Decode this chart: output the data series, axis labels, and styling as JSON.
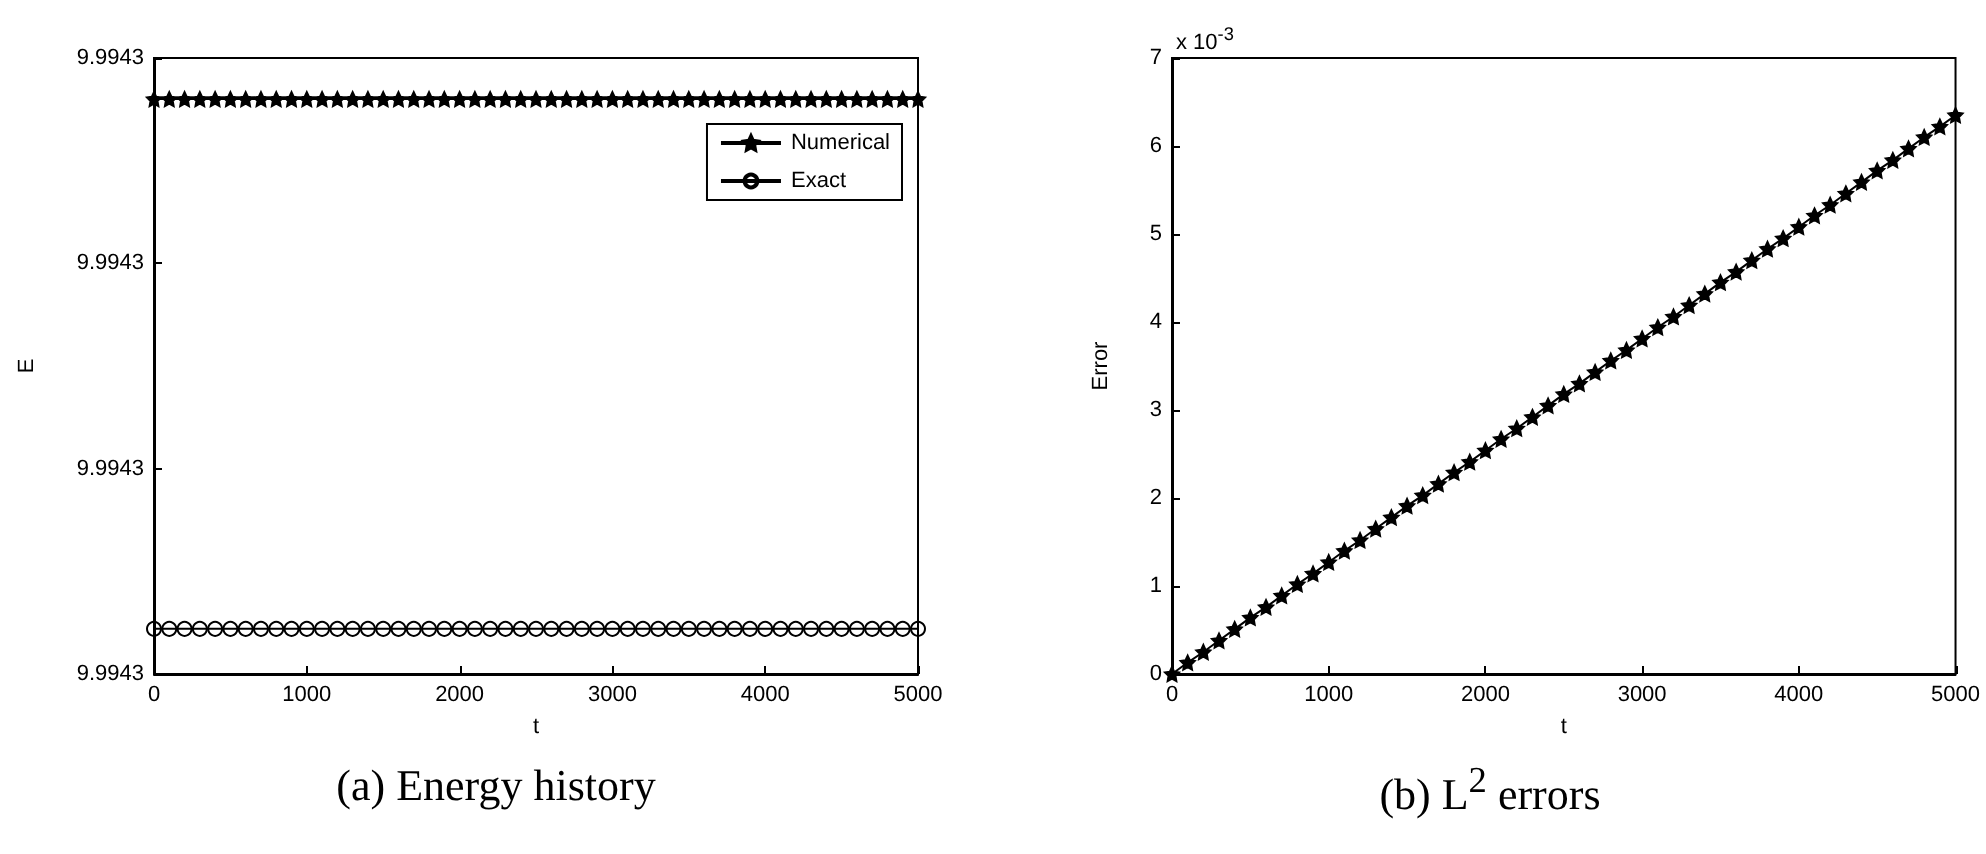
{
  "chart_data": [
    {
      "type": "line",
      "title": "(a)  Energy history",
      "xlabel": "t",
      "ylabel": "E",
      "legend": "top right",
      "line_style": "solid",
      "x": [
        0,
        100,
        200,
        300,
        400,
        500,
        600,
        700,
        800,
        900,
        1000,
        1100,
        1200,
        1300,
        1400,
        1500,
        1600,
        1700,
        1800,
        1900,
        2000,
        2100,
        2200,
        2300,
        2400,
        2500,
        2600,
        2700,
        2800,
        2900,
        3000,
        3100,
        3200,
        3300,
        3400,
        3500,
        3600,
        3700,
        3800,
        3900,
        4000,
        4100,
        4200,
        4300,
        4400,
        4500,
        4600,
        4700,
        4800,
        4900,
        5000
      ],
      "series": [
        {
          "name": "Numerical",
          "color": "#000000",
          "marker": "star",
          "values": [
            9.994328,
            9.994328,
            9.994328,
            9.994328,
            9.994328,
            9.994328,
            9.994328,
            9.994328,
            9.994328,
            9.994328,
            9.994328,
            9.994328,
            9.994328,
            9.994328,
            9.994328,
            9.994328,
            9.994328,
            9.994328,
            9.994328,
            9.994328,
            9.994328,
            9.994328,
            9.994328,
            9.994328,
            9.994328,
            9.994328,
            9.994328,
            9.994328,
            9.994328,
            9.994328,
            9.994328,
            9.994328,
            9.994328,
            9.994328,
            9.994328,
            9.994328,
            9.994328,
            9.994328,
            9.994328,
            9.994328,
            9.994328,
            9.994328,
            9.994328,
            9.994328,
            9.994328,
            9.994328,
            9.994328,
            9.994328,
            9.994328,
            9.994328,
            9.994328
          ]
        },
        {
          "name": "Exact",
          "color": "#000000",
          "marker": "circle",
          "values": [
            9.9943022,
            9.9943022,
            9.9943022,
            9.9943022,
            9.9943022,
            9.9943022,
            9.9943022,
            9.9943022,
            9.9943022,
            9.9943022,
            9.9943022,
            9.9943022,
            9.9943022,
            9.9943022,
            9.9943022,
            9.9943022,
            9.9943022,
            9.9943022,
            9.9943022,
            9.9943022,
            9.9943022,
            9.9943022,
            9.9943022,
            9.9943022,
            9.9943022,
            9.9943022,
            9.9943022,
            9.9943022,
            9.9943022,
            9.9943022,
            9.9943022,
            9.9943022,
            9.9943022,
            9.9943022,
            9.9943022,
            9.9943022,
            9.9943022,
            9.9943022,
            9.9943022,
            9.9943022,
            9.9943022,
            9.9943022,
            9.9943022,
            9.9943022,
            9.9943022,
            9.9943022,
            9.9943022,
            9.9943022,
            9.9943022,
            9.9943022,
            9.9943022
          ]
        }
      ],
      "xlim": [
        0,
        5000
      ],
      "xticks": [
        0,
        1000,
        2000,
        3000,
        4000,
        5000
      ],
      "ylim": [
        9.9943,
        9.99433
      ],
      "yticks": [
        {
          "value": 9.9943,
          "label": "9.9943"
        },
        {
          "value": 9.99431,
          "label": "9.9943"
        },
        {
          "value": 9.99432,
          "label": "9.9943"
        },
        {
          "value": 9.99433,
          "label": "9.9943"
        }
      ],
      "grid": false
    },
    {
      "type": "line",
      "title": "(b)  L$^{2}$ errors",
      "xlabel": "t",
      "ylabel": "Error",
      "annotations": [
        "x 10$^{-3}$"
      ],
      "line_style": "solid",
      "x": [
        0,
        100,
        200,
        300,
        400,
        500,
        600,
        700,
        800,
        900,
        1000,
        1100,
        1200,
        1300,
        1400,
        1500,
        1600,
        1700,
        1800,
        1900,
        2000,
        2100,
        2200,
        2300,
        2400,
        2500,
        2600,
        2700,
        2800,
        2900,
        3000,
        3100,
        3200,
        3300,
        3400,
        3500,
        3600,
        3700,
        3800,
        3900,
        4000,
        4100,
        4200,
        4300,
        4400,
        4500,
        4600,
        4700,
        4800,
        4900,
        5000
      ],
      "series": [
        {
          "color": "#000000",
          "marker": "star",
          "values": [
            0,
            0.13,
            0.25,
            0.38,
            0.51,
            0.64,
            0.76,
            0.89,
            1.02,
            1.14,
            1.27,
            1.4,
            1.52,
            1.65,
            1.78,
            1.91,
            2.03,
            2.16,
            2.29,
            2.41,
            2.54,
            2.67,
            2.79,
            2.92,
            3.05,
            3.18,
            3.3,
            3.43,
            3.56,
            3.68,
            3.81,
            3.94,
            4.06,
            4.19,
            4.32,
            4.45,
            4.57,
            4.7,
            4.83,
            4.95,
            5.08,
            5.21,
            5.33,
            5.46,
            5.59,
            5.72,
            5.84,
            5.97,
            6.1,
            6.22,
            6.35
          ]
        }
      ],
      "xlim": [
        0,
        5000
      ],
      "xticks": [
        0,
        1000,
        2000,
        3000,
        4000,
        5000
      ],
      "ylim": [
        0,
        7
      ],
      "yticks": [
        0,
        1,
        2,
        3,
        4,
        5,
        6,
        7
      ],
      "grid": false
    }
  ]
}
